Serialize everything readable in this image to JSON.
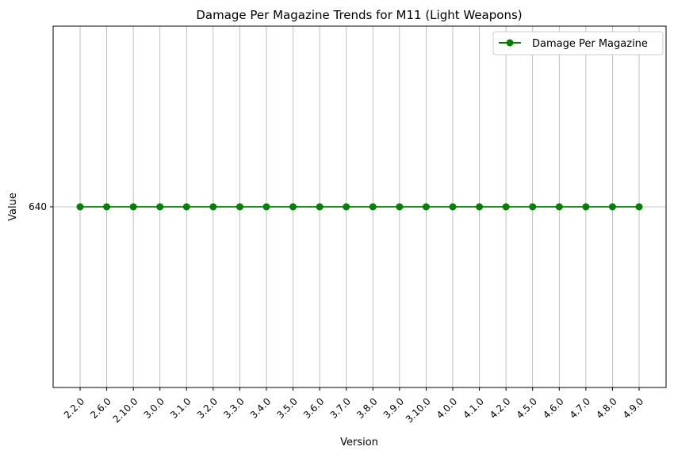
{
  "chart_data": {
    "type": "line",
    "title": "Damage Per Magazine Trends for M11 (Light Weapons)",
    "xlabel": "Version",
    "ylabel": "Value",
    "categories": [
      "2.2.0",
      "2.6.0",
      "2.10.0",
      "3.0.0",
      "3.1.0",
      "3.2.0",
      "3.3.0",
      "3.4.0",
      "3.5.0",
      "3.6.0",
      "3.7.0",
      "3.8.0",
      "3.9.0",
      "3.10.0",
      "4.0.0",
      "4.1.0",
      "4.2.0",
      "4.5.0",
      "4.6.0",
      "4.7.0",
      "4.8.0",
      "4.9.0"
    ],
    "series": [
      {
        "name": "Damage Per Magazine",
        "values": [
          640,
          640,
          640,
          640,
          640,
          640,
          640,
          640,
          640,
          640,
          640,
          640,
          640,
          640,
          640,
          640,
          640,
          640,
          640,
          640,
          640,
          640
        ],
        "color": "#008000",
        "marker": "circle"
      }
    ],
    "yticks": [
      640
    ],
    "ylim": [
      639.9,
      640.1
    ],
    "grid": "x-and-y",
    "legend_position": "top-right"
  }
}
